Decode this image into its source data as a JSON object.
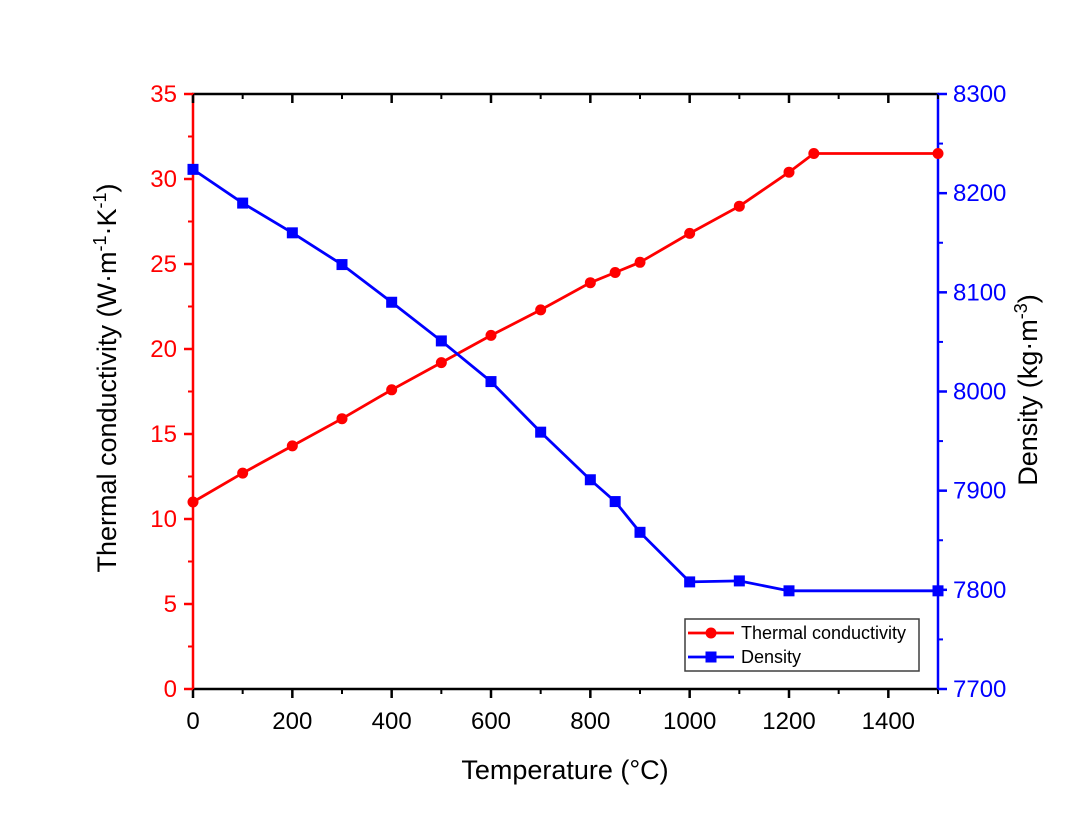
{
  "figure": {
    "background": "#ffffff"
  },
  "chart_data": {
    "type": "line",
    "title": "",
    "grid": false,
    "axes": {
      "x": {
        "label_segments": [
          {
            "t": "Temperature (°C)"
          }
        ],
        "min": 0,
        "max": 1500,
        "major_tick_step": 200,
        "minor_tick_step": 100,
        "tick_labels": [
          "0",
          "200",
          "400",
          "600",
          "800",
          "1000",
          "1200",
          "1400"
        ],
        "color": "#000000"
      },
      "y_left": {
        "label_segments": [
          {
            "t": "Thermal conductivity (W·m"
          },
          {
            "t": "-1",
            "sup": true
          },
          {
            "t": "·K"
          },
          {
            "t": "-1",
            "sup": true
          },
          {
            "t": ")"
          }
        ],
        "min": 0,
        "max": 35,
        "major_tick_step": 5,
        "minor_tick_step": 2.5,
        "tick_labels": [
          "0",
          "5",
          "10",
          "15",
          "20",
          "25",
          "30",
          "35"
        ],
        "color": "#ff0000"
      },
      "y_right": {
        "label_segments": [
          {
            "t": "Density (kg·m"
          },
          {
            "t": "-3",
            "sup": true
          },
          {
            "t": ")"
          }
        ],
        "min": 7700,
        "max": 8300,
        "major_tick_step": 100,
        "minor_tick_step": 50,
        "tick_labels": [
          "7700",
          "7800",
          "7900",
          "8000",
          "8100",
          "8200",
          "8300"
        ],
        "color": "#0000ff"
      }
    },
    "legend": {
      "position": "bottom-right",
      "border_color": "#3f3f3f",
      "background": "#ffffff",
      "entries": [
        {
          "label": "Thermal conductivity",
          "color": "#ff0000",
          "marker": "circle"
        },
        {
          "label": "Density",
          "color": "#0000ff",
          "marker": "square"
        }
      ]
    },
    "series": [
      {
        "name": "Thermal conductivity",
        "axis": "left",
        "color": "#ff0000",
        "marker": "circle",
        "x": [
          0,
          100,
          200,
          300,
          400,
          500,
          600,
          700,
          800,
          850,
          900,
          1000,
          1100,
          1200,
          1250,
          1500
        ],
        "y": [
          11.0,
          12.7,
          14.3,
          15.9,
          17.6,
          19.2,
          20.8,
          22.3,
          23.9,
          24.5,
          25.1,
          26.8,
          28.4,
          30.4,
          31.5,
          31.5
        ]
      },
      {
        "name": "Density",
        "axis": "right",
        "color": "#0000ff",
        "marker": "square",
        "x": [
          0,
          100,
          200,
          300,
          400,
          500,
          600,
          700,
          800,
          850,
          900,
          1000,
          1100,
          1200,
          1500
        ],
        "y": [
          8224,
          8190,
          8160,
          8128,
          8090,
          8051,
          8010,
          7959,
          7911,
          7889,
          7858,
          7808,
          7809,
          7799,
          7799
        ]
      }
    ]
  }
}
